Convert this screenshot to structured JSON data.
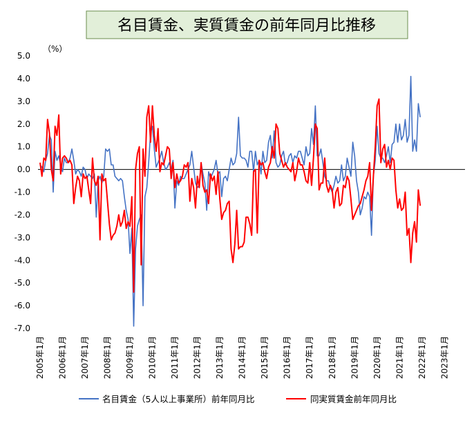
{
  "chart_data": {
    "type": "line",
    "title": "名目賃金、実質賃金の前年同月比推移",
    "ylabel": "（%）",
    "xlabel": "",
    "ylim": [
      -7.0,
      5.0
    ],
    "yticks": [
      "5.0",
      "4.0",
      "3.0",
      "2.0",
      "1.0",
      "0.0",
      "-1.0",
      "-2.0",
      "-3.0",
      "-4.0",
      "-5.0",
      "-6.0",
      "-7.0"
    ],
    "ytick_values": [
      5,
      4,
      3,
      2,
      1,
      0,
      -1,
      -2,
      -3,
      -4,
      -5,
      -6,
      -7
    ],
    "xticks": [
      "2005年1月",
      "2006年1月",
      "2007年1月",
      "2008年1月",
      "2009年1月",
      "2010年1月",
      "2011年1月",
      "2012年1月",
      "2013年1月",
      "2014年1月",
      "2015年1月",
      "2016年1月",
      "2017年1月",
      "2018年1月",
      "2019年1月",
      "2020年1月",
      "2021年1月",
      "2022年1月",
      "2023年1月"
    ],
    "x_start": "2005-01",
    "x_end": "2023-07",
    "grid": false,
    "legend_position": "bottom",
    "series": [
      {
        "name": "名目賃金（5人以上事業所）前年同月比",
        "color": "#4472c4",
        "values": [
          0.2,
          0.1,
          -0.1,
          0.4,
          0.7,
          1.5,
          1.3,
          -1.0,
          0.8,
          0.4,
          0.6,
          0.2,
          -0.1,
          0.5,
          0.3,
          0.3,
          0.5,
          0.9,
          0.4,
          -0.2,
          0.0,
          -0.1,
          -0.3,
          0.1,
          0.0,
          -0.4,
          -0.2,
          -0.3,
          -0.4,
          -0.2,
          -2.1,
          -0.5,
          -0.3,
          -0.6,
          -0.3,
          0.9,
          0.8,
          0.9,
          0.2,
          0.2,
          -0.3,
          -0.4,
          -0.5,
          -0.4,
          -0.5,
          -1.2,
          -1.8,
          -2.2,
          -3.7,
          -2.6,
          -6.9,
          -3.5,
          -2.5,
          -2.2,
          -2.0,
          -6.0,
          -1.2,
          -0.8,
          0.3,
          1.6,
          1.9,
          0.9,
          0.1,
          0.3,
          0.5,
          0.8,
          0.3,
          0.0,
          0.1,
          0.3,
          0.0,
          0.4,
          -1.7,
          -0.5,
          -0.7,
          -0.3,
          -0.4,
          -0.4,
          -0.2,
          0.0,
          0.2,
          0.8,
          0.1,
          -0.6,
          -0.8,
          -0.7,
          0.3,
          -0.2,
          -0.6,
          -1.8,
          -0.1,
          -0.4,
          -0.2,
          0.0,
          0.4,
          -0.2,
          -0.1,
          -1.2,
          -0.4,
          -0.3,
          -0.5,
          0.0,
          0.5,
          0.2,
          0.3,
          0.7,
          2.3,
          0.6,
          0.5,
          0.5,
          0.4,
          0.1,
          0.8,
          0.8,
          -0.1,
          0.8,
          0.2,
          0.4,
          -0.2,
          0.8,
          0.3,
          0.4,
          1.2,
          1.5,
          0.5,
          1.7,
          0.3,
          0.1,
          0.2,
          0.6,
          0.8,
          0.2,
          0.3,
          0.6,
          0.7,
          0.3,
          0.6,
          0.5,
          0.8,
          0.8,
          0.5,
          0.2,
          1.0,
          0.6,
          0.7,
          1.8,
          1.1,
          2.8,
          0.6,
          0.6,
          0.9,
          0.3,
          -0.3,
          -0.5,
          -0.5,
          -0.8,
          -1.0,
          -0.7,
          -0.3,
          -0.6,
          -0.5,
          0.2,
          -0.5,
          -0.3,
          0.5,
          0.1,
          -0.3,
          1.2,
          0.6,
          -0.5,
          -1.0,
          -2.0,
          -1.7,
          -1.2,
          -1.3,
          -1.0,
          -1.2,
          -2.9,
          -0.3,
          0.4,
          1.9,
          0.7,
          0.5,
          0.5,
          0.3,
          0.6,
          1.0,
          0.3,
          1.1,
          1.2,
          2.0,
          1.2,
          2.0,
          1.3,
          1.5,
          2.2,
          1.2,
          1.5,
          4.1,
          0.8,
          1.3,
          0.8,
          2.9,
          2.3
        ]
      },
      {
        "name": "同実質賃金前年同月比",
        "color": "#ff0000",
        "values": [
          0.3,
          -0.3,
          0.5,
          0.4,
          2.2,
          1.6,
          0.0,
          -0.5,
          1.9,
          1.5,
          2.4,
          -0.2,
          0.5,
          0.6,
          0.5,
          0.3,
          0.4,
          0.2,
          -1.5,
          -0.8,
          -0.3,
          -0.5,
          -1.2,
          -0.2,
          -0.4,
          -0.3,
          -0.9,
          -1.5,
          0.5,
          -0.5,
          -0.7,
          -0.3,
          -3.1,
          -0.2,
          -0.5,
          -0.4,
          -1.4,
          -2.4,
          -3.1,
          -2.9,
          -2.8,
          -2.5,
          -2.0,
          -2.5,
          -2.3,
          -1.8,
          -2.6,
          -2.3,
          -2.5,
          -1.2,
          -5.4,
          0.0,
          0.7,
          1.0,
          -4.2,
          0.9,
          -0.3,
          2.3,
          2.8,
          1.2,
          2.8,
          1.5,
          0.8,
          1.8,
          -0.1,
          0.3,
          0.2,
          0.6,
          1.0,
          0.9,
          -0.4,
          0.3,
          -0.8,
          -0.2,
          -0.6,
          -0.5,
          -0.3,
          0.2,
          0.1,
          0.3,
          -1.4,
          -0.4,
          -0.8,
          -1.7,
          -0.3,
          -0.8,
          0.3,
          -0.7,
          -1.0,
          -0.9,
          -1.5,
          -0.2,
          -0.5,
          -0.3,
          -1.1,
          -0.1,
          -1.3,
          -2.2,
          -1.9,
          -1.8,
          -1.5,
          -1.4,
          -3.5,
          -4.1,
          -3.3,
          -1.8,
          -3.5,
          -3.4,
          -3.4,
          -3.2,
          -2.1,
          -2.1,
          -2.4,
          -2.9,
          -0.1,
          0.0,
          -2.8,
          0.4,
          0.2,
          0.3,
          -0.1,
          -0.4,
          0.1,
          0.3,
          1.0,
          0.5,
          2.0,
          1.8,
          0.7,
          0.4,
          0.1,
          0.3,
          0.1,
          0.0,
          -0.1,
          0.3,
          -0.5,
          -0.1,
          0.5,
          0.2,
          0.2,
          -0.1,
          -0.5,
          -0.6,
          0.3,
          -0.7,
          0.5,
          2.0,
          1.8,
          -0.9,
          -0.6,
          -0.6,
          0.5,
          -0.7,
          -1.0,
          -0.7,
          -0.9,
          -1.7,
          -1.0,
          -0.8,
          -1.6,
          -1.5,
          -0.7,
          -0.8,
          -0.3,
          -0.5,
          -1.3,
          -2.2,
          -2.0,
          -1.8,
          -1.6,
          -1.5,
          -1.2,
          -0.9,
          -0.5,
          -0.3,
          0.3,
          -1.8,
          -0.3,
          1.0,
          2.8,
          3.1,
          0.3,
          0.9,
          1.1,
          0.1,
          0.4,
          0.0,
          0.5,
          0.4,
          -0.9,
          -1.7,
          -1.3,
          -1.8,
          -1.7,
          -1.0,
          -2.9,
          -2.6,
          -4.1,
          -2.8,
          -2.3,
          -3.2,
          -0.9,
          -1.6
        ]
      }
    ]
  }
}
